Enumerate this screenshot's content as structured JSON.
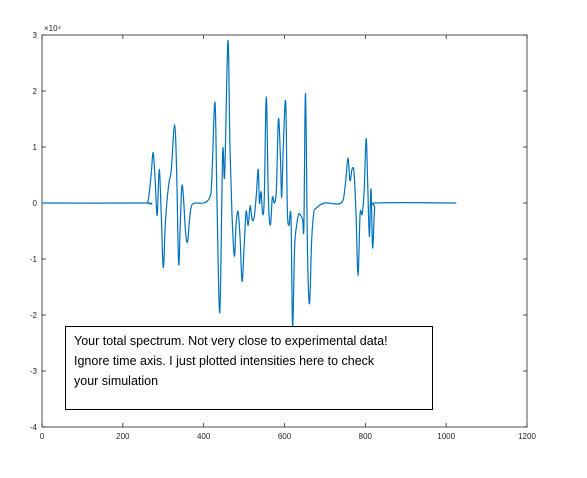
{
  "chart_data": {
    "type": "line",
    "title": "",
    "xlabel": "",
    "ylabel": "",
    "xlim": [
      0,
      1200
    ],
    "ylim": [
      -40000,
      30000
    ],
    "x_ticks": [
      "0",
      "200",
      "400",
      "600",
      "800",
      "1000",
      "1200"
    ],
    "y_ticks": [
      "-4",
      "-3",
      "-2",
      "-1",
      "0",
      "1",
      "2",
      "3"
    ],
    "y_exponent_label": "×10⁴",
    "grid": false,
    "line_color": "#0072BD",
    "series": [
      {
        "points": [
          [
            0,
            0
          ],
          [
            250,
            0
          ],
          [
            262,
            300
          ],
          [
            270,
            5000
          ],
          [
            275,
            9000
          ],
          [
            280,
            4000
          ],
          [
            285,
            -2200
          ],
          [
            290,
            6000
          ],
          [
            295,
            -2000
          ],
          [
            300,
            -11500
          ],
          [
            305,
            -4000
          ],
          [
            310,
            1000
          ],
          [
            315,
            4000
          ],
          [
            320,
            6000
          ],
          [
            328,
            14000
          ],
          [
            333,
            6000
          ],
          [
            338,
            -10800
          ],
          [
            342,
            -4000
          ],
          [
            346,
            3000
          ],
          [
            350,
            1000
          ],
          [
            355,
            -5000
          ],
          [
            360,
            -7000
          ],
          [
            365,
            -3000
          ],
          [
            370,
            -500
          ],
          [
            380,
            0
          ],
          [
            400,
            0
          ],
          [
            415,
            1000
          ],
          [
            420,
            4000
          ],
          [
            428,
            18000
          ],
          [
            433,
            0
          ],
          [
            440,
            -19500
          ],
          [
            447,
            9000
          ],
          [
            452,
            5000
          ],
          [
            460,
            29000
          ],
          [
            465,
            10000
          ],
          [
            470,
            -2000
          ],
          [
            476,
            -9500
          ],
          [
            480,
            -4000
          ],
          [
            485,
            -1500
          ],
          [
            490,
            -6000
          ],
          [
            495,
            -14000
          ],
          [
            500,
            -8000
          ],
          [
            505,
            -1500
          ],
          [
            510,
            -4000
          ],
          [
            515,
            -500
          ],
          [
            520,
            -3000
          ],
          [
            525,
            -2500
          ],
          [
            530,
            1200
          ],
          [
            535,
            6000
          ],
          [
            538,
            0
          ],
          [
            542,
            2000
          ],
          [
            546,
            -2000
          ],
          [
            550,
            1000
          ],
          [
            555,
            19000
          ],
          [
            560,
            1000
          ],
          [
            565,
            -4000
          ],
          [
            570,
            1000
          ],
          [
            575,
            0
          ],
          [
            580,
            2500
          ],
          [
            585,
            15000
          ],
          [
            590,
            8000
          ],
          [
            593,
            1000
          ],
          [
            597,
            10000
          ],
          [
            603,
            18000
          ],
          [
            607,
            -1000
          ],
          [
            611,
            -4000
          ],
          [
            616,
            -2500
          ],
          [
            620,
            -22000
          ],
          [
            625,
            -8000
          ],
          [
            630,
            -4000
          ],
          [
            635,
            -2000
          ],
          [
            640,
            -2200
          ],
          [
            645,
            -3000
          ],
          [
            648,
            -4000
          ],
          [
            652,
            19500
          ],
          [
            657,
            -9000
          ],
          [
            662,
            -18000
          ],
          [
            667,
            -7000
          ],
          [
            672,
            -2000
          ],
          [
            677,
            -1000
          ],
          [
            700,
            0
          ],
          [
            740,
            0
          ],
          [
            750,
            3000
          ],
          [
            757,
            8000
          ],
          [
            762,
            4000
          ],
          [
            767,
            6000
          ],
          [
            772,
            5500
          ],
          [
            777,
            -2000
          ],
          [
            782,
            -13000
          ],
          [
            787,
            -2000
          ],
          [
            792,
            -2000
          ],
          [
            797,
            2000
          ],
          [
            802,
            11500
          ],
          [
            806,
            3000
          ],
          [
            810,
            -6000
          ],
          [
            814,
            2500
          ],
          [
            818,
            -8000
          ],
          [
            823,
            -1000
          ],
          [
            830,
            0
          ],
          [
            1025,
            0
          ]
        ]
      }
    ]
  },
  "annotation": {
    "line1": "Your total spectrum. Not very close to experimental data!",
    "line2": "Ignore time axis. I just plotted intensities here to check",
    "line3": "your simulation"
  }
}
